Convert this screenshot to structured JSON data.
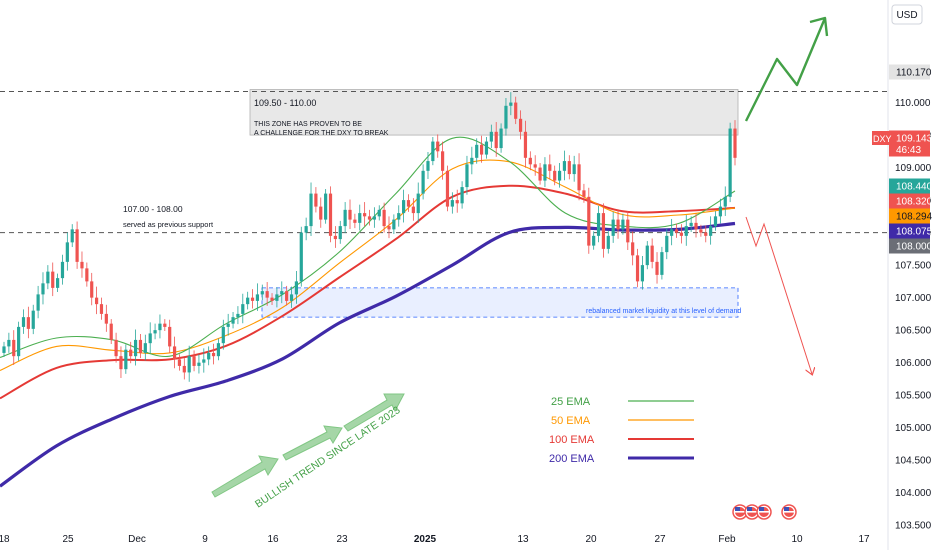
{
  "currency": "USD",
  "symbol": "DXY",
  "countdown": "46:43",
  "colors": {
    "candle_up": "#26a69a",
    "candle_down": "#ef5350",
    "ema25": "#4caf50",
    "ema50": "#ff9800",
    "ema100": "#e53935",
    "ema200": "#3f2aa8",
    "demand_zone": "#2962ff",
    "arrow_green": "#43a047",
    "arrow_red": "#ef5350"
  },
  "chart_data": {
    "type": "candlestick",
    "ylim": [
      103.35,
      111.5
    ],
    "y_ticks": [
      103.5,
      104.0,
      104.5,
      105.0,
      105.5,
      106.0,
      106.5,
      107.0,
      107.5,
      108.0,
      108.5,
      109.0,
      109.5,
      110.0,
      110.5
    ],
    "x_ticks": [
      "18",
      "25",
      "Dec",
      "9",
      "16",
      "23",
      "2025",
      "13",
      "20",
      "27",
      "Feb",
      "10",
      "17"
    ],
    "price_tags": [
      {
        "value": "110.170",
        "style": "gray"
      },
      {
        "value": "109.143",
        "style": "red"
      },
      {
        "value": "108.440",
        "style": "green"
      },
      {
        "value": "108.320",
        "style": "red"
      },
      {
        "value": "108.294",
        "style": "orange"
      },
      {
        "value": "108.075",
        "style": "navy"
      },
      {
        "value": "108.000",
        "style": "dark"
      }
    ],
    "resistance_line": 110.17,
    "support_line": 108.0,
    "resistance_zone": {
      "low": 109.5,
      "high": 110.2,
      "label": "109.50 - 110.00",
      "note": [
        "THIS ZONE HAS PROVEN TO BE",
        "A CHALLENGE FOR THE DXY TO BREAK"
      ]
    },
    "support_note": {
      "title": "107.00 - 108.00",
      "text": "served as previous support"
    },
    "demand_zone": {
      "low": 106.7,
      "high": 107.15,
      "label": "rebalanced market liquidity at this level of demand"
    },
    "trend_label": "BULLISH TREND SINCE LATE 2023",
    "legend": [
      "25 EMA",
      "50 EMA",
      "100 EMA",
      "200 EMA"
    ],
    "ema200_anchors": [
      104.1,
      104.72,
      105.14,
      105.48,
      105.72,
      106.06,
      106.61,
      107.02,
      107.5,
      108.0,
      108.08,
      108.04,
      108.05,
      108.14
    ],
    "ema100_anchors": [
      105.45,
      105.92,
      106.04,
      106.05,
      106.26,
      106.72,
      107.31,
      107.9,
      108.55,
      108.72,
      108.6,
      108.33,
      108.33,
      108.38
    ],
    "ema50_anchors": [
      105.88,
      106.25,
      106.19,
      106.15,
      106.42,
      106.85,
      107.53,
      108.2,
      108.98,
      109.09,
      108.7,
      108.28,
      108.27,
      108.38
    ],
    "ema25_anchors": [
      106.08,
      106.38,
      106.35,
      106.1,
      106.6,
      107.05,
      107.7,
      108.6,
      109.45,
      109.1,
      108.3,
      108.1,
      108.14,
      108.64
    ],
    "closes": [
      106.25,
      106.35,
      106.1,
      106.55,
      106.7,
      106.52,
      106.8,
      107.05,
      107.22,
      107.4,
      107.15,
      107.3,
      107.55,
      107.85,
      108.05,
      107.55,
      107.45,
      107.25,
      107.0,
      106.9,
      106.75,
      106.6,
      106.35,
      106.1,
      105.9,
      106.2,
      106.1,
      106.35,
      106.15,
      106.3,
      106.45,
      106.5,
      106.6,
      106.55,
      106.25,
      106.05,
      105.95,
      105.85,
      106.1,
      105.95,
      106.0,
      106.05,
      106.15,
      106.1,
      106.3,
      106.55,
      106.6,
      106.7,
      106.75,
      106.9,
      107.0,
      106.95,
      107.05,
      107.1,
      107.0,
      106.95,
      107.05,
      107.1,
      106.95,
      107.05,
      107.25,
      108.0,
      108.1,
      108.6,
      108.4,
      108.2,
      108.6,
      107.95,
      107.9,
      108.1,
      108.35,
      108.2,
      108.15,
      108.3,
      108.25,
      108.2,
      108.25,
      108.35,
      108.1,
      108.05,
      108.2,
      108.3,
      108.5,
      108.4,
      108.3,
      108.6,
      108.95,
      109.1,
      109.4,
      109.25,
      108.95,
      108.4,
      108.5,
      108.45,
      108.7,
      109.05,
      109.15,
      109.35,
      109.2,
      109.4,
      109.55,
      109.3,
      109.6,
      109.95,
      110.0,
      109.75,
      109.55,
      109.15,
      109.05,
      109.0,
      108.8,
      109.05,
      108.95,
      108.8,
      108.95,
      109.1,
      108.9,
      109.05,
      108.65,
      108.55,
      107.8,
      107.95,
      108.3,
      107.75,
      107.95,
      108.2,
      108.05,
      108.2,
      107.85,
      107.65,
      107.25,
      107.5,
      107.8,
      107.55,
      107.35,
      107.7,
      107.95,
      108.05,
      108.0,
      107.95,
      108.1,
      108.15,
      108.05,
      108.0,
      107.95,
      108.1,
      108.25,
      108.4,
      108.55,
      109.6,
      109.15
    ]
  },
  "aria": "DXY daily chart with EMAs, support and resistance zones"
}
